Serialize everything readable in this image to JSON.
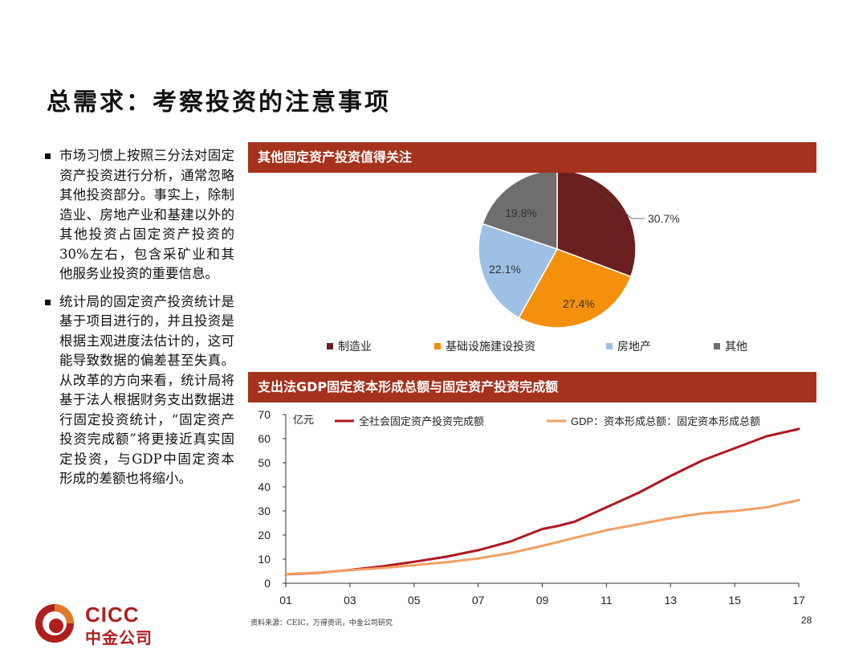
{
  "page": {
    "title": "总需求：考察投资的注意事项",
    "source": "资料来源：CEIC，万得资讯，中金公司研究",
    "page_number": "28"
  },
  "bullets": [
    "市场习惯上按照三分法对固定资产投资进行分析，通常忽略其他投资部分。事实上，除制造业、房地产业和基建以外的其他投资占固定资产投资的30%左右，包含采矿业和其他服务业投资的重要信息。",
    "统计局的固定资产投资统计是基于项目进行的，并且投资是根据主观进度法估计的，这可能导致数据的偏差甚至失真。从改革的方向来看，统计局将基于法人根据财务支出数据进行固定投资统计，“固定资产投资完成额”将更接近真实固定投资，与GDP中固定资本形成的差额也将缩小。"
  ],
  "logo": {
    "en": "CICC",
    "cn": "中金公司"
  },
  "chart_data": [
    {
      "type": "pie",
      "title": "其他固定资产投资值得关注",
      "slices": [
        {
          "label": "制造业",
          "value": 30.7,
          "value_label": "30.7%",
          "color": "#6b1e1e"
        },
        {
          "label": "基础设施建设投资",
          "value": 27.4,
          "value_label": "27.4%",
          "color": "#f4900c"
        },
        {
          "label": "房地产",
          "value": 22.1,
          "value_label": "22.1%",
          "color": "#9ec0e4"
        },
        {
          "label": "其他",
          "value": 19.8,
          "value_label": "19.8%",
          "color": "#6e6e6e"
        }
      ]
    },
    {
      "type": "line",
      "title": "支出法GDP固定资本形成总额与固定资产投资完成额",
      "ylabel": "亿元",
      "ylim": [
        0,
        70
      ],
      "yticks": [
        0,
        10,
        20,
        30,
        40,
        50,
        60,
        70
      ],
      "xlim": [
        2001,
        2017
      ],
      "xticks": [
        {
          "value": 2001,
          "label": "01"
        },
        {
          "value": 2003,
          "label": "03"
        },
        {
          "value": 2005,
          "label": "05"
        },
        {
          "value": 2007,
          "label": "07"
        },
        {
          "value": 2009,
          "label": "09"
        },
        {
          "value": 2011,
          "label": "11"
        },
        {
          "value": 2013,
          "label": "13"
        },
        {
          "value": 2015,
          "label": "15"
        },
        {
          "value": 2017,
          "label": "17"
        }
      ],
      "series": [
        {
          "name": "全社会固定资产投资完成额",
          "color": "#b0171f",
          "x": [
            2001,
            2002,
            2003,
            2004,
            2005,
            2006,
            2007,
            2008,
            2009,
            2009.5,
            2010,
            2011,
            2012,
            2013,
            2014,
            2015,
            2016,
            2017
          ],
          "y": [
            3.7,
            4.3,
            5.5,
            7.0,
            8.9,
            11.0,
            13.7,
            17.3,
            22.5,
            23.8,
            25.5,
            31.5,
            37.5,
            44.5,
            51.0,
            56.0,
            61.0,
            64.0
          ]
        },
        {
          "name": "GDP：资本形成总额：固定资本形成总额",
          "color": "#f2a064",
          "x": [
            2001,
            2002,
            2003,
            2004,
            2005,
            2006,
            2007,
            2008,
            2009,
            2010,
            2011,
            2012,
            2013,
            2014,
            2015,
            2016,
            2017
          ],
          "y": [
            3.8,
            4.4,
            5.4,
            6.3,
            7.5,
            8.7,
            10.3,
            12.5,
            15.5,
            18.8,
            22.0,
            24.5,
            27.0,
            29.0,
            30.0,
            31.5,
            34.5
          ]
        }
      ]
    }
  ]
}
